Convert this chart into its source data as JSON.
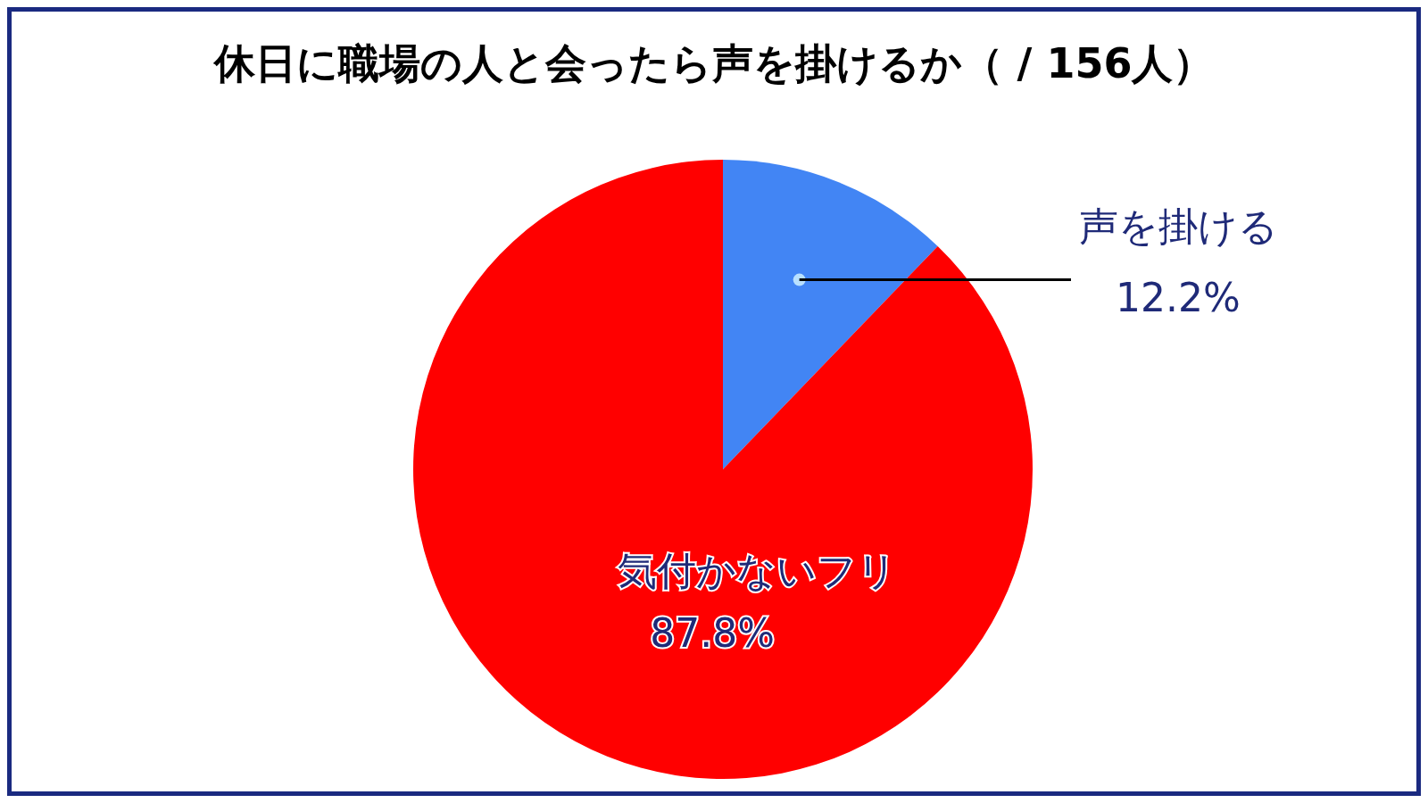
{
  "chart_data": {
    "type": "pie",
    "title": "休日に職場の人と会ったら声を掛けるか（ / 156人）",
    "categories": [
      "声を掛ける",
      "気付かないフリ"
    ],
    "values": [
      12.2,
      87.8
    ],
    "colors": [
      "#4285f4",
      "#ff0000"
    ],
    "value_labels": [
      "12.2%",
      "87.8%"
    ],
    "legend": false
  }
}
